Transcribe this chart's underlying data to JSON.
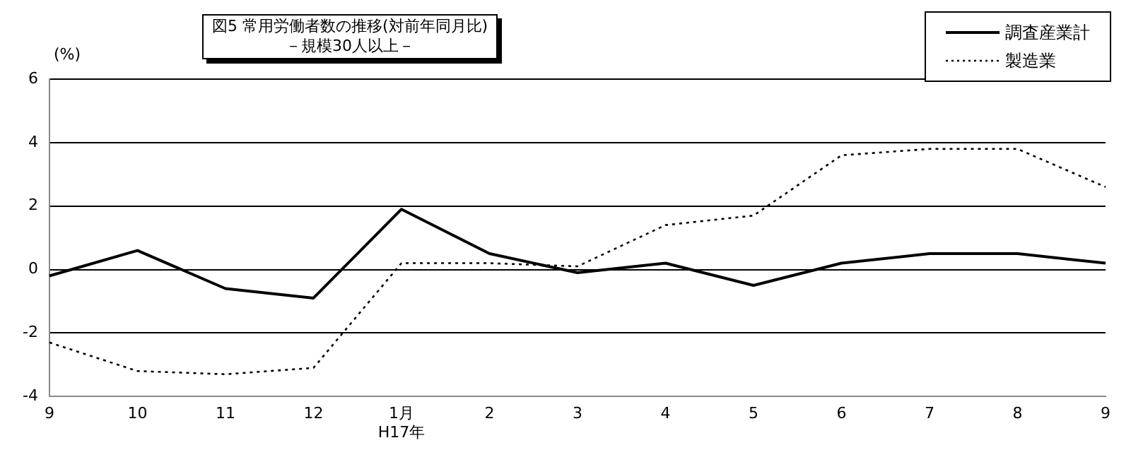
{
  "chart_data": {
    "type": "line",
    "title": "図5 常用労働者数の推移(対前年同月比)",
    "subtitle": "－規模30人以上－",
    "ylabel": "(%)",
    "categories": [
      "9",
      "10",
      "11",
      "12",
      "1月\nH17年",
      "2",
      "3",
      "4",
      "5",
      "6",
      "7",
      "8",
      "9"
    ],
    "series": [
      {
        "name": "調査産業計",
        "color": "#000000",
        "line_style": "solid",
        "values": [
          -0.2,
          0.6,
          -0.6,
          -0.9,
          1.9,
          0.5,
          -0.1,
          0.2,
          -0.5,
          0.2,
          0.5,
          0.5,
          0.2
        ]
      },
      {
        "name": "製造業",
        "color": "#000000",
        "line_style": "dotted",
        "values": [
          -2.3,
          -3.2,
          -3.3,
          -3.1,
          0.2,
          0.2,
          0.1,
          1.4,
          1.7,
          3.6,
          3.8,
          3.8,
          2.6
        ]
      }
    ],
    "ylim": [
      -4,
      6
    ],
    "yticks": [
      -4,
      -2,
      0,
      2,
      4,
      6
    ],
    "grid": "y",
    "legend": "top right",
    "marker": "none"
  }
}
